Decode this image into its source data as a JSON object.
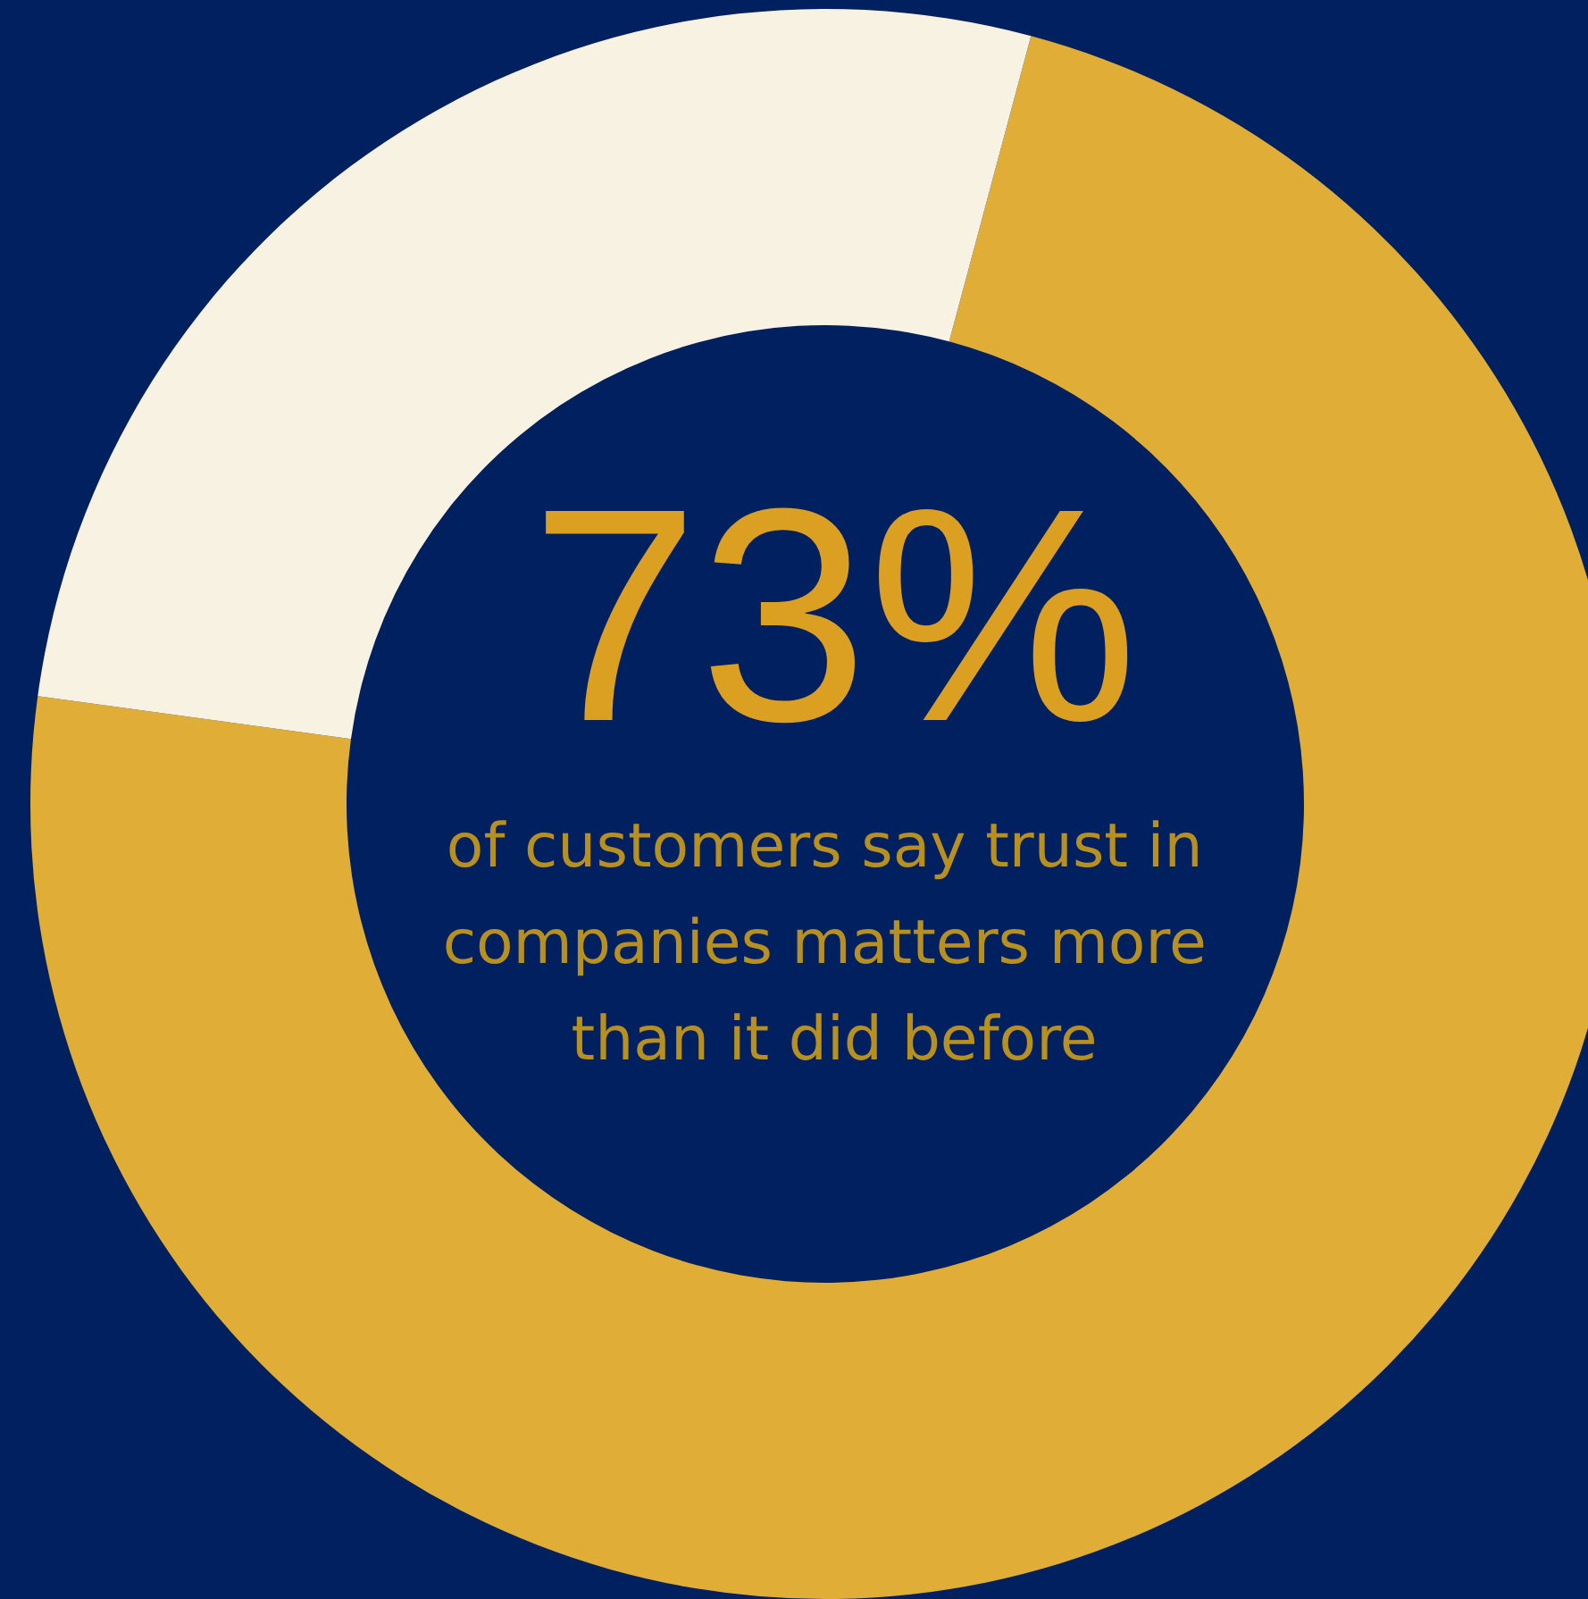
{
  "chart_data": {
    "type": "donut",
    "title": "73%",
    "subtitle": "of customers say trust in companies matters more than it did before",
    "categories": [
      null,
      null
    ],
    "values": [
      73,
      27
    ],
    "colors": [
      "#e0ad36",
      "#f8f2e3"
    ]
  }
}
